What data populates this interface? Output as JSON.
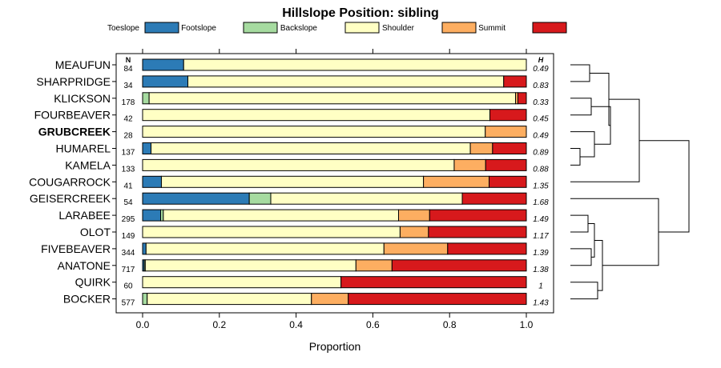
{
  "chart_data": {
    "type": "bar",
    "stacked": true,
    "orientation": "horizontal",
    "title": "Hillslope Position: sibling",
    "xlabel": "Proportion",
    "ylabel": "",
    "xlim": [
      0,
      1
    ],
    "x_ticks": [
      "0.0",
      "0.2",
      "0.4",
      "0.6",
      "0.8",
      "1.0"
    ],
    "n_header": "N",
    "h_header": "H",
    "highlight": "GRUBCREEK",
    "legend": [
      {
        "name": "Toeslope",
        "color": "#2c7bb6"
      },
      {
        "name": "Footslope",
        "color": "#a6dba0"
      },
      {
        "name": "Backslope",
        "color": "#ffffc4"
      },
      {
        "name": "Shoulder",
        "color": "#fdae61"
      },
      {
        "name": "Summit",
        "color": "#d7191c"
      }
    ],
    "categories": [
      "MEAUFUN",
      "SHARPRIDGE",
      "KLICKSON",
      "FOURBEAVER",
      "GRUBCREEK",
      "HUMAREL",
      "KAMELA",
      "COUGARROCK",
      "GEISERCREEK",
      "LARABEE",
      "OLOT",
      "FIVEBEAVER",
      "ANATONE",
      "QUIRK",
      "BOCKER"
    ],
    "n": [
      "84",
      "34",
      "178",
      "42",
      "28",
      "137",
      "133",
      "41",
      "54",
      "295",
      "149",
      "344",
      "717",
      "60",
      "577"
    ],
    "h": [
      "0.49",
      "0.83",
      "0.33",
      "0.45",
      "0.49",
      "0.89",
      "0.88",
      "1.35",
      "1.68",
      "1.49",
      "1.17",
      "1.39",
      "1.38",
      "1",
      "1.43"
    ],
    "series": [
      {
        "name": "Toeslope",
        "values": [
          0.107,
          0.118,
          0.0,
          0.0,
          0.0,
          0.022,
          0.0,
          0.049,
          0.278,
          0.047,
          0.0,
          0.009,
          0.004,
          0.0,
          0.0
        ]
      },
      {
        "name": "Footslope",
        "values": [
          0.0,
          0.0,
          0.017,
          0.0,
          0.0,
          0.0,
          0.0,
          0.0,
          0.056,
          0.007,
          0.0,
          0.0,
          0.003,
          0.0,
          0.012
        ]
      },
      {
        "name": "Backslope",
        "values": [
          0.893,
          0.823,
          0.955,
          0.905,
          0.893,
          0.832,
          0.812,
          0.683,
          0.499,
          0.613,
          0.671,
          0.62,
          0.549,
          0.517,
          0.428
        ]
      },
      {
        "name": "Shoulder",
        "values": [
          0.0,
          0.0,
          0.006,
          0.0,
          0.107,
          0.058,
          0.082,
          0.171,
          0.0,
          0.081,
          0.074,
          0.166,
          0.094,
          0.0,
          0.096
        ]
      },
      {
        "name": "Summit",
        "values": [
          0.0,
          0.059,
          0.022,
          0.095,
          0.0,
          0.088,
          0.106,
          0.097,
          0.167,
          0.252,
          0.255,
          0.205,
          0.35,
          0.483,
          0.464
        ]
      }
    ]
  }
}
